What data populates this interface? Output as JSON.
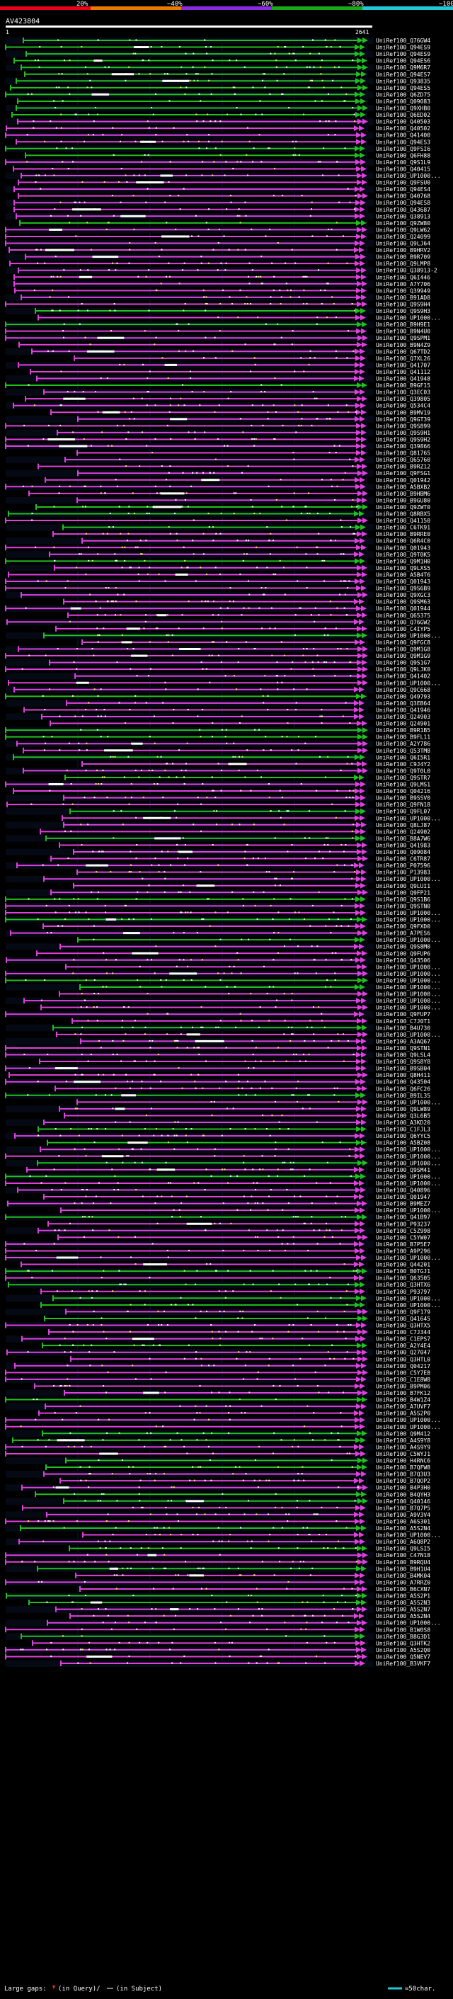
{
  "chart_data": {
    "type": "sequence-alignment-overview",
    "query_name": "AV423804",
    "range_start": "1",
    "range_end": "2641",
    "identity_legend": [
      {
        "label": "20%",
        "color": "#e8001c"
      },
      {
        "label": "~40%",
        "color": "#e87a00"
      },
      {
        "label": "~60%",
        "color": "#8a2be2"
      },
      {
        "label": "~80%",
        "color": "#18a818"
      },
      {
        "label": "~100%",
        "color": "#20c8d8"
      }
    ],
    "footer": {
      "large_gaps_label": "Large gaps:",
      "query_gap_text": "(in Query)/",
      "subject_gap_text": "(in Subject)",
      "scale_text": "=50char."
    },
    "colors": {
      "magenta": "#e040e0",
      "green": "#20c020",
      "yellow": "#f0f060",
      "white": "#ffffff"
    },
    "hits": [
      "UniRef100_Q76GW4",
      "UniRef100_Q94ES9",
      "UniRef100_Q94ES9",
      "UniRef100_Q94ES6",
      "UniRef100_Q9M6R7",
      "UniRef100_Q94ES7",
      "UniRef100_Q93835",
      "UniRef100_Q94ES5",
      "UniRef100_Q6ZD75",
      "UniRef100_Q09083",
      "UniRef100_Q9XHB0",
      "UniRef100_Q6ED02",
      "UniRef100_Q40503",
      "UniRef100_Q40502",
      "UniRef100_Q41400",
      "UniRef100_Q94ES3",
      "UniRef100_Q9FSI6",
      "UniRef100_Q6FH88",
      "UniRef100_Q9S1L9",
      "UniRef100_Q40415",
      "UniRef100_UP1000...",
      "UniRef100_Q9FSU0",
      "UniRef100_Q94ES4",
      "UniRef100_Q40768",
      "UniRef100_Q94ES8",
      "UniRef100_Q43687",
      "UniRef100_Q38913",
      "UniRef100_Q9ZW80",
      "UniRef100_Q9LW62",
      "UniRef100_Q24099",
      "UniRef100_Q9LJ64",
      "UniRef100_B9HRV2",
      "UniRef100_B9R709",
      "UniRef100_Q9LMP8",
      "UniRef100_Q38913-2",
      "UniRef100_Q6I446",
      "UniRef100_A7Y706",
      "UniRef100_Q39949",
      "UniRef100_B91AD8",
      "UniRef100_Q9S9H4",
      "UniRef100_Q9S9H3",
      "UniRef100_UP1000...",
      "UniRef100_B9H9E1",
      "UniRef100_B9N4U0",
      "UniRef100_Q9SPM1",
      "UniRef100_B9N4Z9",
      "UniRef100_Q67TD2",
      "UniRef100_Q7XL26",
      "UniRef100_Q41707",
      "UniRef100_Q41112",
      "UniRef100_Q41948",
      "UniRef100_B9GF15",
      "UniRef100_Q3EC03",
      "UniRef100_Q39805",
      "UniRef100_Q534C4",
      "UniRef100_B9MV19",
      "UniRef100_Q9GT39",
      "UniRef100_Q9S899",
      "UniRef100_Q9S9H1",
      "UniRef100_Q9S9H2",
      "UniRef100_Q39866",
      "UniRef100_Q81765",
      "UniRef100_Q65760",
      "UniRef100_B9RZ12",
      "UniRef100_Q9FSG1",
      "UniRef100_Q01942",
      "UniRef100_A5BXB2",
      "UniRef100_B9HBM6",
      "UniRef100_B9GU80",
      "UniRef100_Q9ZWT0",
      "UniRef100_Q8RBX5",
      "UniRef100_Q41150",
      "UniRef100_C6TK91",
      "UniRef100_B9RRE0",
      "UniRef100_Q6R4C0",
      "UniRef100_Q01943",
      "UniRef100_Q9T0K5",
      "UniRef100_Q9M1H0",
      "UniRef100_Q9LXS5",
      "UniRef100_A5B4T6",
      "UniRef100_Q01943",
      "UniRef100_Q9S6B9",
      "UniRef100_Q9XGC3",
      "UniRef100_Q9SM63",
      "UniRef100_Q01944",
      "UniRef100_Q65375",
      "UniRef100_Q76GW2",
      "UniRef100_C4IYP5",
      "UniRef100_UP1000...",
      "UniRef100_Q9FGC8",
      "UniRef100_Q9M1G8",
      "UniRef100_Q9M1G9",
      "UniRef100_Q9S1G7",
      "UniRef100_Q9LJK0",
      "UniRef100_Q41402",
      "UniRef100_UP1000...",
      "UniRef100_Q9C668",
      "UniRef100_Q49793",
      "UniRef100_Q3EB64",
      "UniRef100_Q41946",
      "UniRef100_Q24903",
      "UniRef100_Q24901",
      "UniRef100_B9R1B5",
      "UniRef100_B9FL11",
      "UniRef100_A2Y786",
      "UniRef100_Q53TM8",
      "UniRef100_Q6I5R1",
      "UniRef100_C9J4Y2",
      "UniRef100_Q9T0L0",
      "UniRef100_Q9STR7",
      "UniRef100_Q9LMS1",
      "UniRef100_Q04216",
      "UniRef100_B9SSV0",
      "UniRef100_Q9FN18",
      "UniRef100_Q9FL07",
      "UniRef100_UP1000...",
      "UniRef100_Q8LJ87",
      "UniRef100_Q24902",
      "UniRef100_B8A7W6",
      "UniRef100_Q41983",
      "UniRef100_Q09084",
      "UniRef100_C6TR87",
      "UniRef100_P07596",
      "UniRef100_P13983",
      "UniRef100_UP1000...",
      "UniRef100_Q9LUI1",
      "UniRef100_Q9FP21",
      "UniRef100_Q9S1B6",
      "UniRef100_Q9STN0",
      "UniRef100_UP1000...",
      "UniRef100_UP1000...",
      "UniRef100_Q9FXD0",
      "UniRef100_A7PES6",
      "UniRef100_UP1000...",
      "UniRef100_Q9S8M0",
      "UniRef100_Q9FUP6",
      "UniRef100_Q43506",
      "UniRef100_UP1000...",
      "UniRef100_UP1000...",
      "UniRef100_UP1000...",
      "UniRef100_UP1000...",
      "UniRef100_UP1000...",
      "UniRef100_UP1000...",
      "UniRef100_UP1000...",
      "UniRef100_Q9FUP7",
      "UniRef100_C7J0T1",
      "UniRef100_B4U730",
      "UniRef100_UP1000...",
      "UniRef100_A3AQ67",
      "UniRef100_Q9STN1",
      "UniRef100_Q9LSL4",
      "UniRef100_Q9S8Y8",
      "UniRef100_B9SB04",
      "UniRef100_Q8H411",
      "UniRef100_Q43504",
      "UniRef100_Q6FC26",
      "UniRef100_B9IL35",
      "UniRef100_UP1000...",
      "UniRef100_Q9LW89",
      "UniRef100_Q3L6B5",
      "UniRef100_A3KD20",
      "UniRef100_C1FJL3",
      "UniRef100_Q6YYC5",
      "UniRef100_A5BZ08",
      "UniRef100_UP1000...",
      "UniRef100_UP1000...",
      "UniRef100_UP1000...",
      "UniRef100_Q9SM41",
      "UniRef100_UP1000...",
      "UniRef100_UP1000...",
      "UniRef100_Q40896",
      "UniRef100_Q01947",
      "UniRef100_B9MEZ7",
      "UniRef100_UP1000...",
      "UniRef100_Q41B97",
      "UniRef100_P93237",
      "UniRef100_C5Z998",
      "UniRef100_C5YW07",
      "UniRef100_B7P5E7",
      "UniRef100_A9P296",
      "UniRef100_UP1000...",
      "UniRef100_Q44201",
      "UniRef100_B0TGJ1",
      "UniRef100_Q63505",
      "UniRef100_Q3HTX6",
      "UniRef100_P93797",
      "UniRef100_UP1000...",
      "UniRef100_UP1000...",
      "UniRef100_Q9F179",
      "UniRef100_Q41645",
      "UniRef100_Q3HTX5",
      "UniRef100_C7J344",
      "UniRef100_C1EPS7",
      "UniRef100_A2Y4E4",
      "UniRef100_Q27047",
      "UniRef100_Q3HTL0",
      "UniRef100_Q04217",
      "UniRef100_C5Y7E8",
      "UniRef100_C1E8W8",
      "UniRef100_B9PM06",
      "UniRef100_B7FK12",
      "UniRef100_B4W1Z4",
      "UniRef100_A7UVF7",
      "UniRef100_A5S2P0",
      "UniRef100_UP1000...",
      "UniRef100_UP1000...",
      "UniRef100_Q9M412",
      "UniRef100_A4S9Y8",
      "UniRef100_A4S9Y9",
      "UniRef100_C5WYJ1",
      "UniRef100_H4RNC6",
      "UniRef100_B7QFW8",
      "UniRef100_B7Q3U3",
      "UniRef100_B7QOP2",
      "UniRef100_B4P3H0",
      "UniRef100_B4QYH3",
      "UniRef100_Q40146",
      "UniRef100_B7Q7P5",
      "UniRef100_A9V3V4",
      "UniRef100_A6S301",
      "UniRef100_A5S2N4",
      "UniRef100_UP1000...",
      "UniRef100_A6Q8P2",
      "UniRef100_Q9LSI5",
      "UniRef100_C47N18",
      "UniRef100_B9RQU4",
      "UniRef100_B9H1U4",
      "UniRef100_B4MK04",
      "UniRef100_A7RRZ0",
      "UniRef100_B6CXN7",
      "UniRef100_A5S2P1",
      "UniRef100_A5S2N3",
      "UniRef100_A5S2N7",
      "UniRef100_A5S2N4",
      "UniRef100_UP1000...",
      "UniRef100_B1W0S8",
      "UniRef100_B8G3D1",
      "UniRef100_Q3HTK2",
      "UniRef100_A5S2Q0",
      "UniRef100_Q5NEV7",
      "UniRef100_B3VKF7"
    ]
  }
}
